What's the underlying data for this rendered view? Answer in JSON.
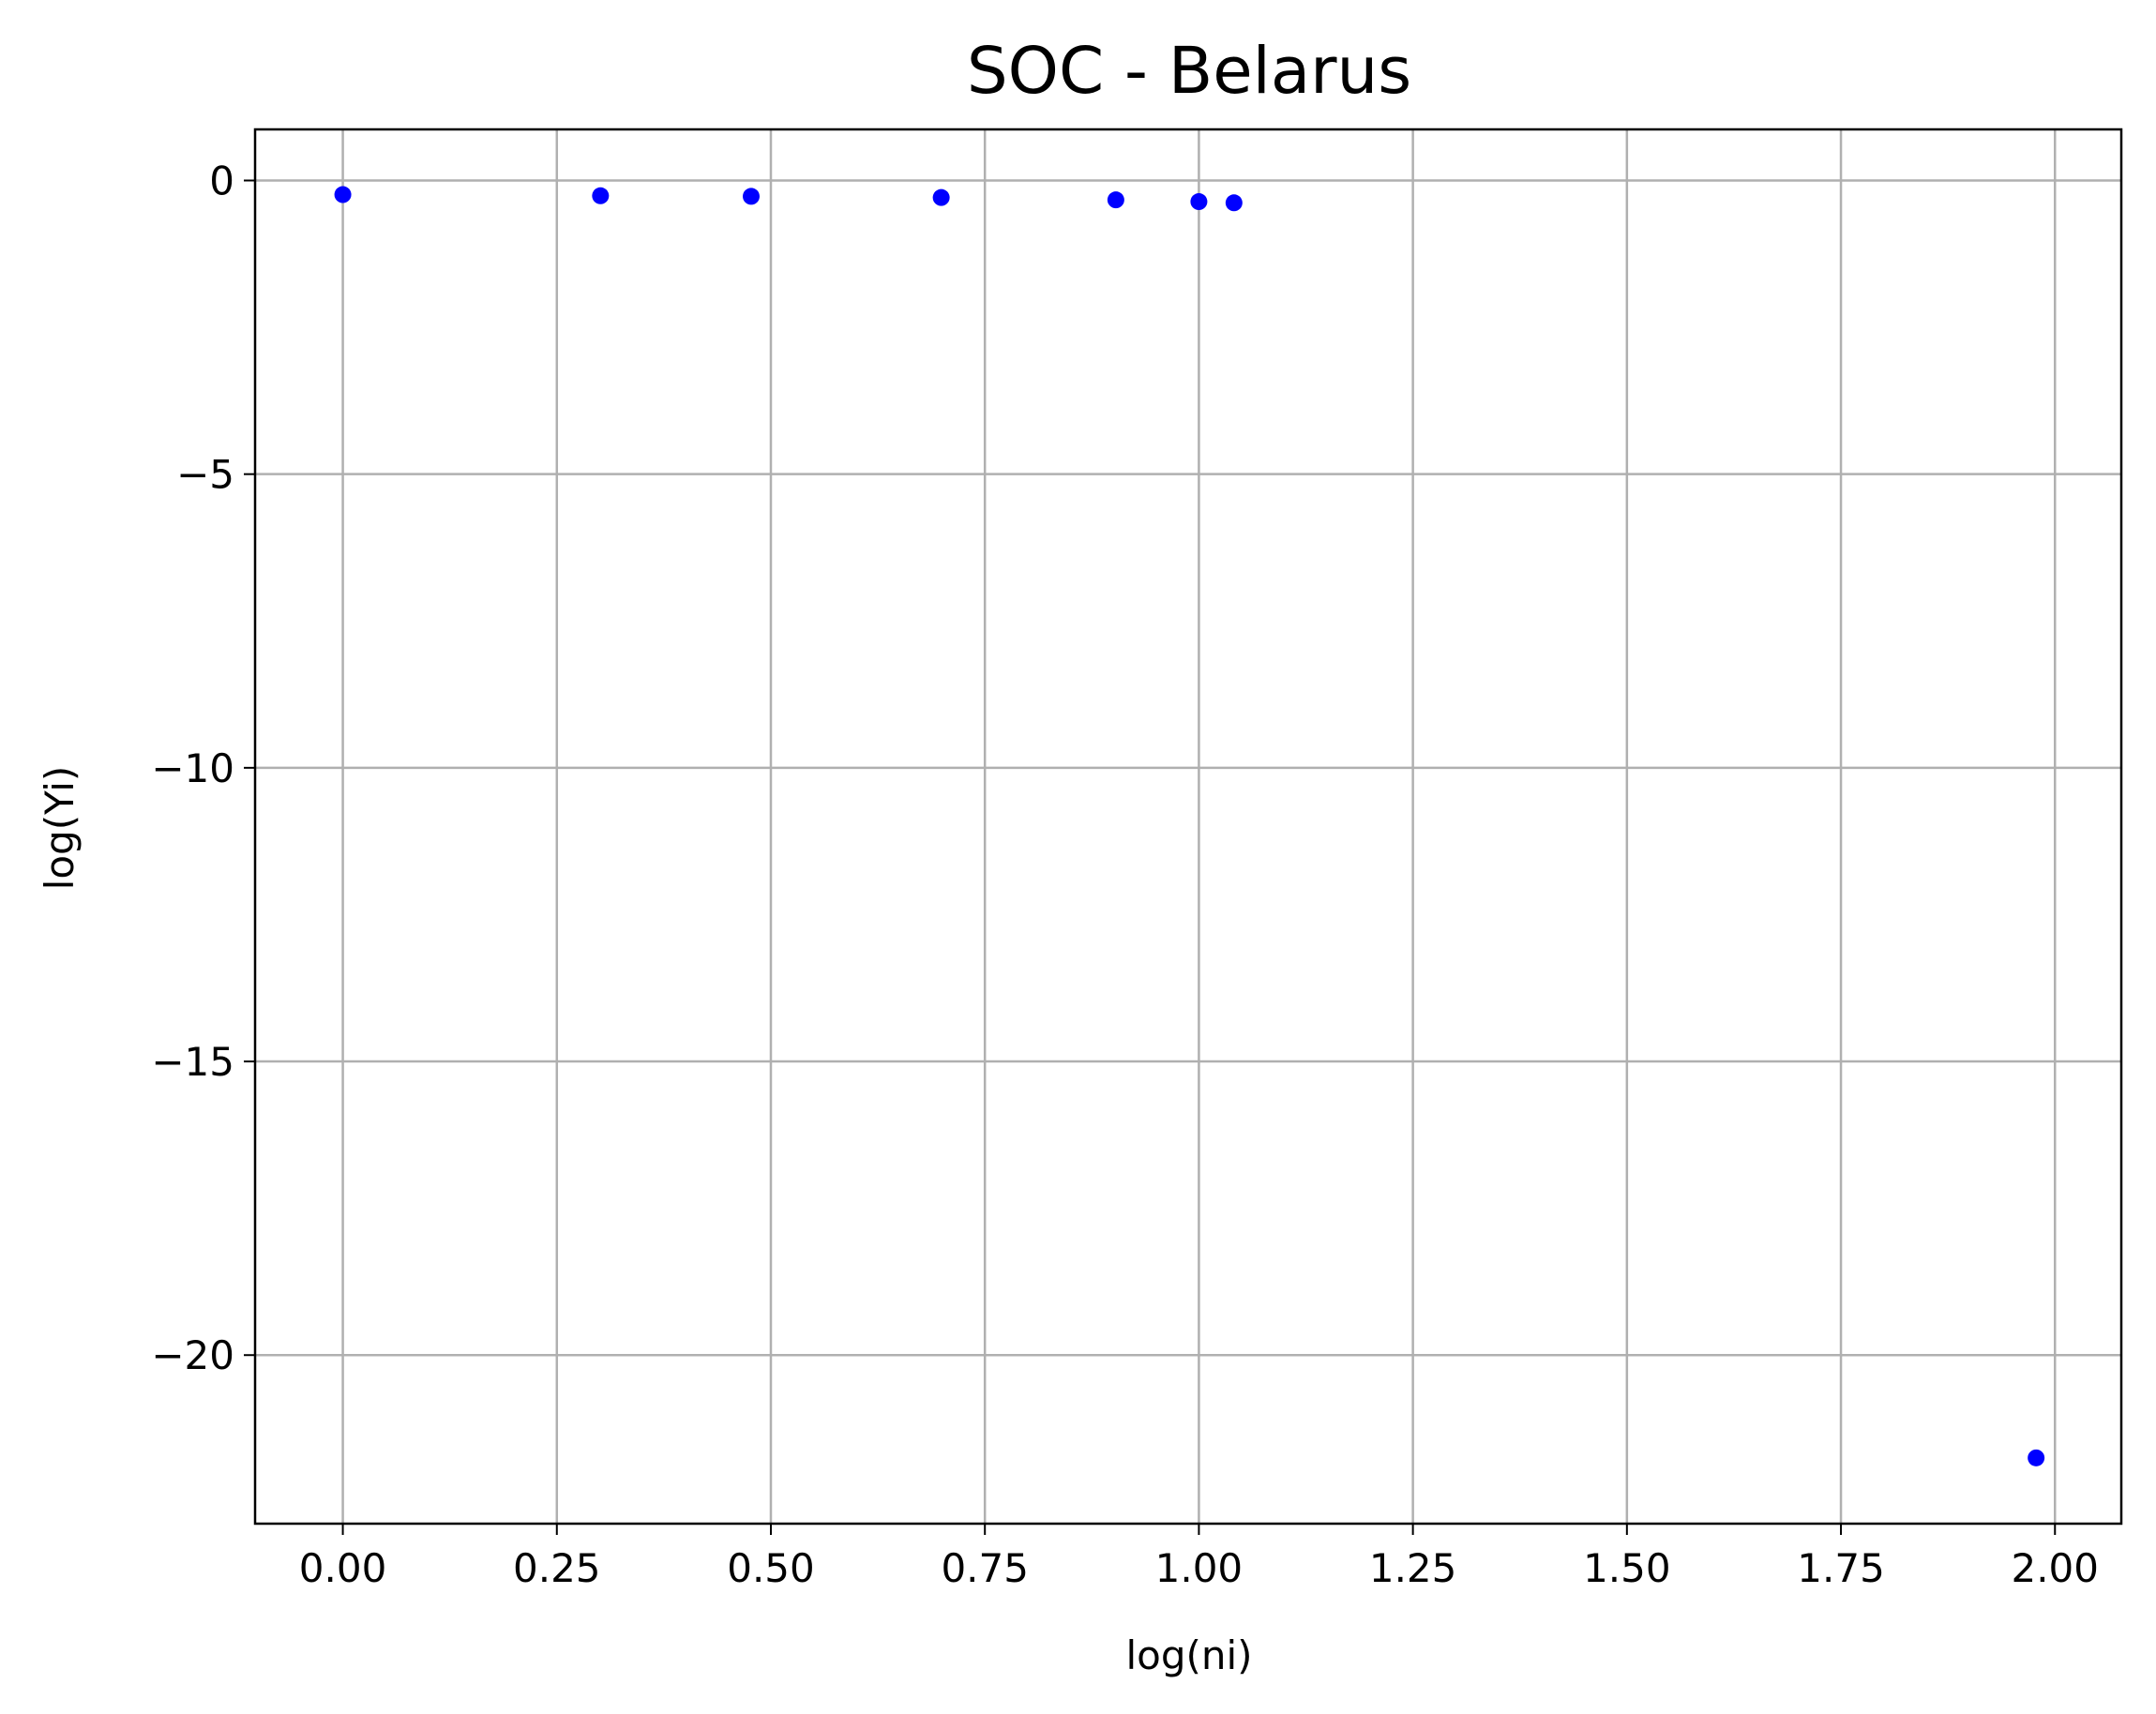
{
  "chart_data": {
    "type": "scatter",
    "title": "SOC - Belarus",
    "xlabel": "log(ni)",
    "ylabel": "log(Yi)",
    "xlim": [
      -0.1025,
      2.0775
    ],
    "ylim": [
      -22.87,
      0.87
    ],
    "x_ticks": [
      0.0,
      0.25,
      0.5,
      0.75,
      1.0,
      1.25,
      1.5,
      1.75,
      2.0
    ],
    "x_tick_labels": [
      "0.00",
      "0.25",
      "0.50",
      "0.75",
      "1.00",
      "1.25",
      "1.50",
      "1.75",
      "2.00"
    ],
    "y_ticks": [
      0,
      -5,
      -10,
      -15,
      -20
    ],
    "y_tick_labels": [
      "0",
      "−5",
      "−10",
      "−15",
      "−20"
    ],
    "grid": true,
    "marker_color": "#0000ff",
    "series": [
      {
        "x": [
          0.0,
          0.301,
          0.477,
          0.699,
          0.903,
          1.0,
          1.041,
          1.978
        ],
        "y": [
          -0.24,
          -0.26,
          -0.27,
          -0.29,
          -0.33,
          -0.36,
          -0.38,
          -21.75
        ]
      }
    ]
  }
}
